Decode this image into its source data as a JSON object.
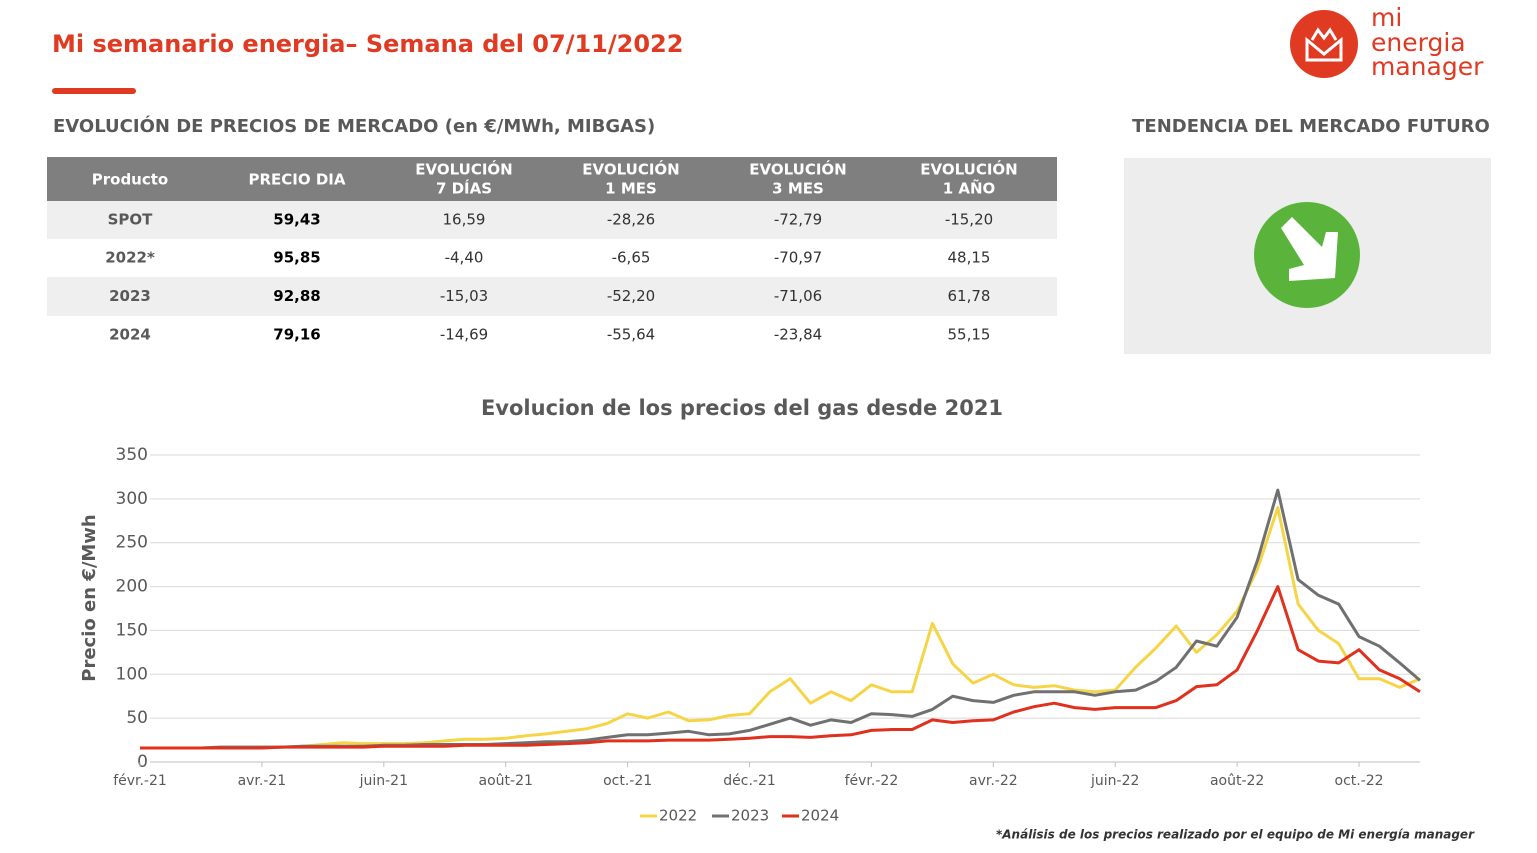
{
  "header": {
    "title": "Mi semanario energia– Semana del 07/11/2022",
    "logo": [
      "mi",
      "energia",
      "manager"
    ]
  },
  "table": {
    "title": "EVOLUCIÓN DE PRECIOS DE MERCADO (en €/MWh, MIBGAS)",
    "columns": [
      [
        "Producto"
      ],
      [
        "PRECIO DIA"
      ],
      [
        "EVOLUCIÓN",
        "7 DÍAS"
      ],
      [
        "EVOLUCIÓN",
        "1 MES"
      ],
      [
        "EVOLUCIÓN",
        "3 MES"
      ],
      [
        "EVOLUCIÓN",
        "1 AÑO"
      ]
    ],
    "rows": [
      [
        "SPOT",
        "59,43",
        "16,59",
        "-28,26",
        "-72,79",
        "-15,20"
      ],
      [
        "2022*",
        "95,85",
        "-4,40",
        "-6,65",
        "-70,97",
        "48,15"
      ],
      [
        "2023",
        "92,88",
        "-15,03",
        "-52,20",
        "-71,06",
        "61,78"
      ],
      [
        "2024",
        "79,16",
        "-14,69",
        "-55,64",
        "-23,84",
        "55,15"
      ]
    ]
  },
  "trend": {
    "title": "TENDENCIA DEL MERCADO FUTURO"
  },
  "chart_data": {
    "type": "line",
    "title": "Evolucion de los precios del gas desde 2021",
    "y_label": "Precio en €/Mwh",
    "categories": [
      "févr.-21",
      null,
      null,
      null,
      null,
      null,
      "avr.-21",
      null,
      null,
      null,
      null,
      null,
      "juin-21",
      null,
      null,
      null,
      null,
      null,
      "août-21",
      null,
      null,
      null,
      null,
      null,
      "oct.-21",
      null,
      null,
      null,
      null,
      null,
      "déc.-21",
      null,
      null,
      null,
      null,
      null,
      "févr.-22",
      null,
      null,
      null,
      null,
      null,
      "avr.-22",
      null,
      null,
      null,
      null,
      null,
      "juin-22",
      null,
      null,
      null,
      null,
      null,
      "août-22",
      null,
      null,
      null,
      null,
      null,
      "oct.-22",
      null,
      null,
      null
    ],
    "series": [
      {
        "name": "2022",
        "color": "#f5d547",
        "values": [
          16,
          16,
          16,
          16,
          17,
          17,
          17,
          17,
          18,
          20,
          22,
          21,
          21,
          21,
          22,
          24,
          26,
          26,
          27,
          30,
          32,
          35,
          38,
          44,
          55,
          50,
          57,
          47,
          48,
          53,
          55,
          80,
          95,
          67,
          80,
          70,
          88,
          80,
          80,
          158,
          112,
          90,
          100,
          88,
          85,
          87,
          82,
          80,
          82,
          108,
          130,
          155,
          125,
          145,
          172,
          220,
          290,
          180,
          150,
          135,
          95,
          95,
          85,
          95
        ]
      },
      {
        "name": "2023",
        "color": "#707070",
        "values": [
          16,
          16,
          16,
          16,
          17,
          17,
          17,
          17,
          18,
          18,
          18,
          18,
          19,
          19,
          20,
          20,
          20,
          20,
          21,
          22,
          23,
          23,
          25,
          28,
          31,
          31,
          33,
          35,
          31,
          32,
          36,
          43,
          50,
          42,
          48,
          45,
          55,
          54,
          52,
          60,
          75,
          70,
          68,
          76,
          80,
          80,
          80,
          76,
          80,
          82,
          92,
          108,
          138,
          132,
          165,
          230,
          310,
          208,
          190,
          180,
          143,
          132,
          113,
          93
        ]
      },
      {
        "name": "2024",
        "color": "#e0301e",
        "values": [
          16,
          16,
          16,
          16,
          16,
          16,
          16,
          17,
          17,
          17,
          17,
          17,
          18,
          18,
          18,
          18,
          19,
          19,
          19,
          19,
          20,
          21,
          22,
          24,
          24,
          24,
          25,
          25,
          25,
          26,
          27,
          29,
          29,
          28,
          30,
          31,
          36,
          37,
          37,
          48,
          45,
          47,
          48,
          57,
          63,
          67,
          62,
          60,
          62,
          62,
          62,
          70,
          86,
          88,
          105,
          150,
          200,
          128,
          115,
          113,
          128,
          105,
          95,
          80
        ]
      }
    ],
    "ylim": [
      0,
      350
    ],
    "yticks": [
      0,
      50,
      100,
      150,
      200,
      250,
      300,
      350
    ],
    "grid": true,
    "legend": "bottom"
  },
  "footnote": "*Análisis de los precios realizado por el equipo de Mi energía manager"
}
